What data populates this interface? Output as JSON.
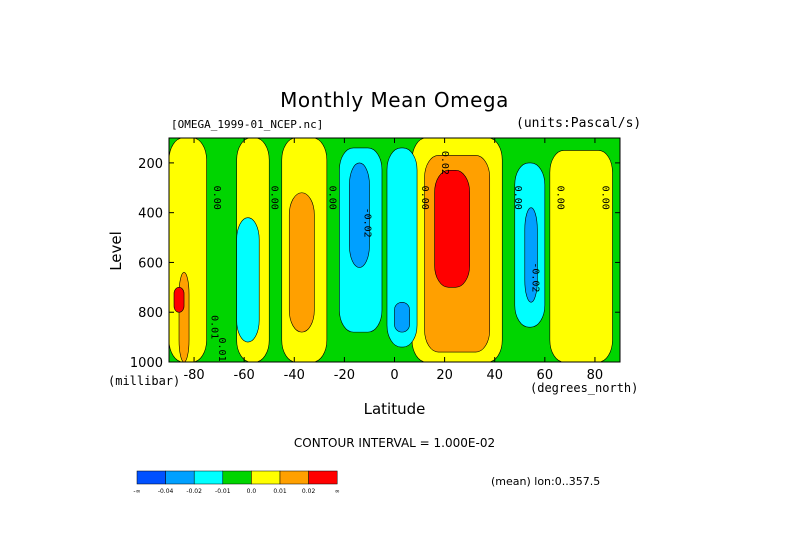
{
  "chart_data": {
    "type": "heatmap",
    "title": "Monthly Mean Omega",
    "source_file": "[OMEGA_1999-01_NCEP.nc]",
    "units": "(units:Pascal/s)",
    "xlabel": "Latitude",
    "x_units": "(degrees_north)",
    "ylabel": "Level",
    "y_units": "(millibar)",
    "xlim": [
      -90,
      90
    ],
    "ylim": [
      1000,
      100
    ],
    "x_ticks": [
      -80,
      -60,
      -40,
      -20,
      0,
      20,
      40,
      60,
      80
    ],
    "y_ticks": [
      200,
      400,
      600,
      800,
      1000
    ],
    "contour_interval": "CONTOUR INTERVAL = 1.000E-02",
    "mean_note": "(mean) lon:0..357.5",
    "contour_labels": [
      {
        "text": "0.00",
        "x": -72,
        "y": 340
      },
      {
        "text": "0.00",
        "x": -49,
        "y": 340
      },
      {
        "text": "0.00",
        "x": -26,
        "y": 340
      },
      {
        "text": "-0.02",
        "x": -12,
        "y": 440
      },
      {
        "text": "0.00",
        "x": 11,
        "y": 340
      },
      {
        "text": "0.02",
        "x": 19,
        "y": 200
      },
      {
        "text": "0.00",
        "x": 48,
        "y": 340
      },
      {
        "text": "0.00",
        "x": 65,
        "y": 340
      },
      {
        "text": "0.00",
        "x": 83,
        "y": 340
      },
      {
        "text": "-0.02",
        "x": 55,
        "y": 660
      },
      {
        "text": "0.01",
        "x": -73,
        "y": 860
      },
      {
        "text": "0.01",
        "x": -70,
        "y": 950
      }
    ],
    "regions": [
      {
        "level": "-0.01",
        "color": "#00d500",
        "xr": [
          -90,
          90
        ],
        "yr": [
          100,
          1000
        ]
      },
      {
        "level": "0.0",
        "color": "#ffff00",
        "xr": [
          -90,
          -75
        ],
        "yr": [
          100,
          1000
        ]
      },
      {
        "level": "0.0",
        "color": "#ffff00",
        "xr": [
          -63,
          -50
        ],
        "yr": [
          100,
          1000
        ]
      },
      {
        "level": "0.0",
        "color": "#ffff00",
        "xr": [
          -45,
          -27
        ],
        "yr": [
          100,
          1000
        ]
      },
      {
        "level": "0.0",
        "color": "#ffff00",
        "xr": [
          7,
          43
        ],
        "yr": [
          100,
          1000
        ]
      },
      {
        "level": "0.0",
        "color": "#ffff00",
        "xr": [
          62,
          87
        ],
        "yr": [
          150,
          1000
        ]
      },
      {
        "level": "0.01",
        "color": "#ffa000",
        "xr": [
          -42,
          -32
        ],
        "yr": [
          320,
          880
        ]
      },
      {
        "level": "0.01",
        "color": "#ffa000",
        "xr": [
          12,
          38
        ],
        "yr": [
          170,
          960
        ]
      },
      {
        "level": "0.01",
        "color": "#ffa000",
        "xr": [
          -86,
          -82
        ],
        "yr": [
          640,
          1000
        ]
      },
      {
        "level": "0.02",
        "color": "#ff0000",
        "xr": [
          16,
          30
        ],
        "yr": [
          230,
          700
        ]
      },
      {
        "level": "-0.02",
        "color": "#00ffff",
        "xr": [
          -22,
          -5
        ],
        "yr": [
          140,
          880
        ]
      },
      {
        "level": "-0.02",
        "color": "#00ffff",
        "xr": [
          -3,
          9
        ],
        "yr": [
          140,
          940
        ]
      },
      {
        "level": "-0.02",
        "color": "#00ffff",
        "xr": [
          -63,
          -54
        ],
        "yr": [
          420,
          920
        ]
      },
      {
        "level": "-0.02",
        "color": "#00ffff",
        "xr": [
          48,
          60
        ],
        "yr": [
          200,
          860
        ]
      },
      {
        "level": "-0.04",
        "color": "#00a0ff",
        "xr": [
          -18,
          -10
        ],
        "yr": [
          200,
          620
        ]
      },
      {
        "level": "-0.04",
        "color": "#00a0ff",
        "xr": [
          0,
          6
        ],
        "yr": [
          760,
          880
        ]
      },
      {
        "level": "-0.04",
        "color": "#00a0ff",
        "xr": [
          52,
          57
        ],
        "yr": [
          380,
          760
        ]
      },
      {
        "level": "0.02",
        "color": "#ff0000",
        "xr": [
          -88,
          -84
        ],
        "yr": [
          700,
          800
        ]
      }
    ]
  },
  "colorbar": {
    "colors": [
      "#0050ff",
      "#00a0ff",
      "#00ffff",
      "#00d500",
      "#ffff00",
      "#ffa000",
      "#ff0000"
    ],
    "labels": [
      "-∞",
      "-0.04",
      "-0.02",
      "-0.01",
      "0.0",
      "0.01",
      "0.02",
      "∞"
    ]
  }
}
